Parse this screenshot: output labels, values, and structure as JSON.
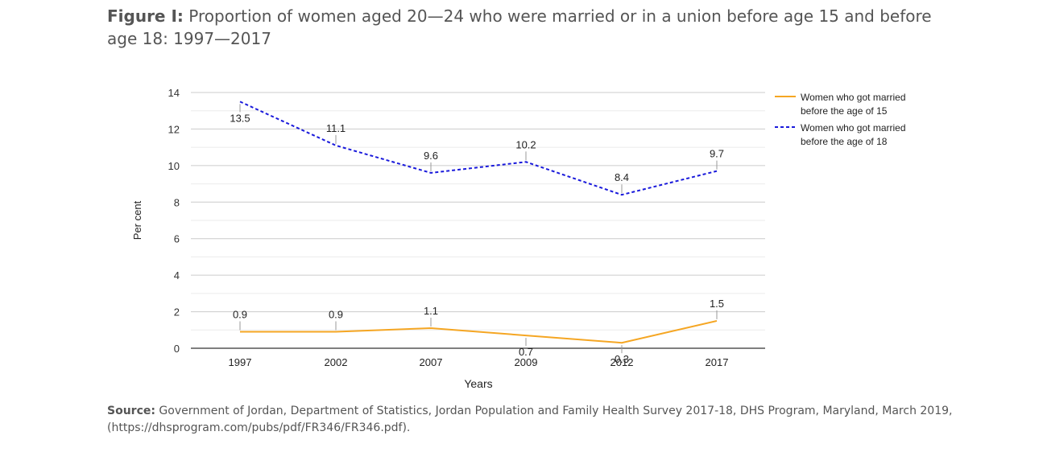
{
  "figure": {
    "label": "Figure I:",
    "title": "Proportion of women aged 20—24 who were married or in a union before age 15 and before age 18: 1997—2017"
  },
  "source": {
    "label": "Source:",
    "text": "Government of Jordan, Department of Statistics, Jordan Population and Family Health Survey 2017-18, DHS Program, Maryland, March 2019, (https://dhsprogram.com/pubs/pdf/FR346/FR346.pdf)."
  },
  "chart_data": {
    "type": "line",
    "categories": [
      "1997",
      "2002",
      "2007",
      "2009",
      "2012",
      "2017"
    ],
    "xlabel": "Years",
    "ylabel": "Per cent",
    "ylim": [
      0,
      14
    ],
    "yticks": [
      0,
      2,
      4,
      6,
      8,
      10,
      12,
      14
    ],
    "grid": true,
    "legend_position": "right",
    "series": [
      {
        "name": "Women who got married before the age of 15",
        "legend_lines": [
          "Women who got married",
          "before the age of 15"
        ],
        "values": [
          0.9,
          0.9,
          1.1,
          0.7,
          0.3,
          1.5
        ],
        "labels": [
          "0.9",
          "0.9",
          "1.1",
          "0.7",
          "0.3",
          "1.5"
        ],
        "label_side": [
          "above",
          "above",
          "above",
          "below",
          "below",
          "above"
        ],
        "color": "#f5a623",
        "style": "solid"
      },
      {
        "name": "Women who got married before the age of 18",
        "legend_lines": [
          "Women who got married",
          "before the age of 18"
        ],
        "values": [
          13.5,
          11.1,
          9.6,
          10.2,
          8.4,
          9.7
        ],
        "labels": [
          "13.5",
          "11.1",
          "9.6",
          "10.2",
          "8.4",
          "9.7"
        ],
        "label_side": [
          "below",
          "above",
          "above",
          "above",
          "above",
          "above"
        ],
        "color": "#1a1adb",
        "style": "dashed"
      }
    ]
  }
}
